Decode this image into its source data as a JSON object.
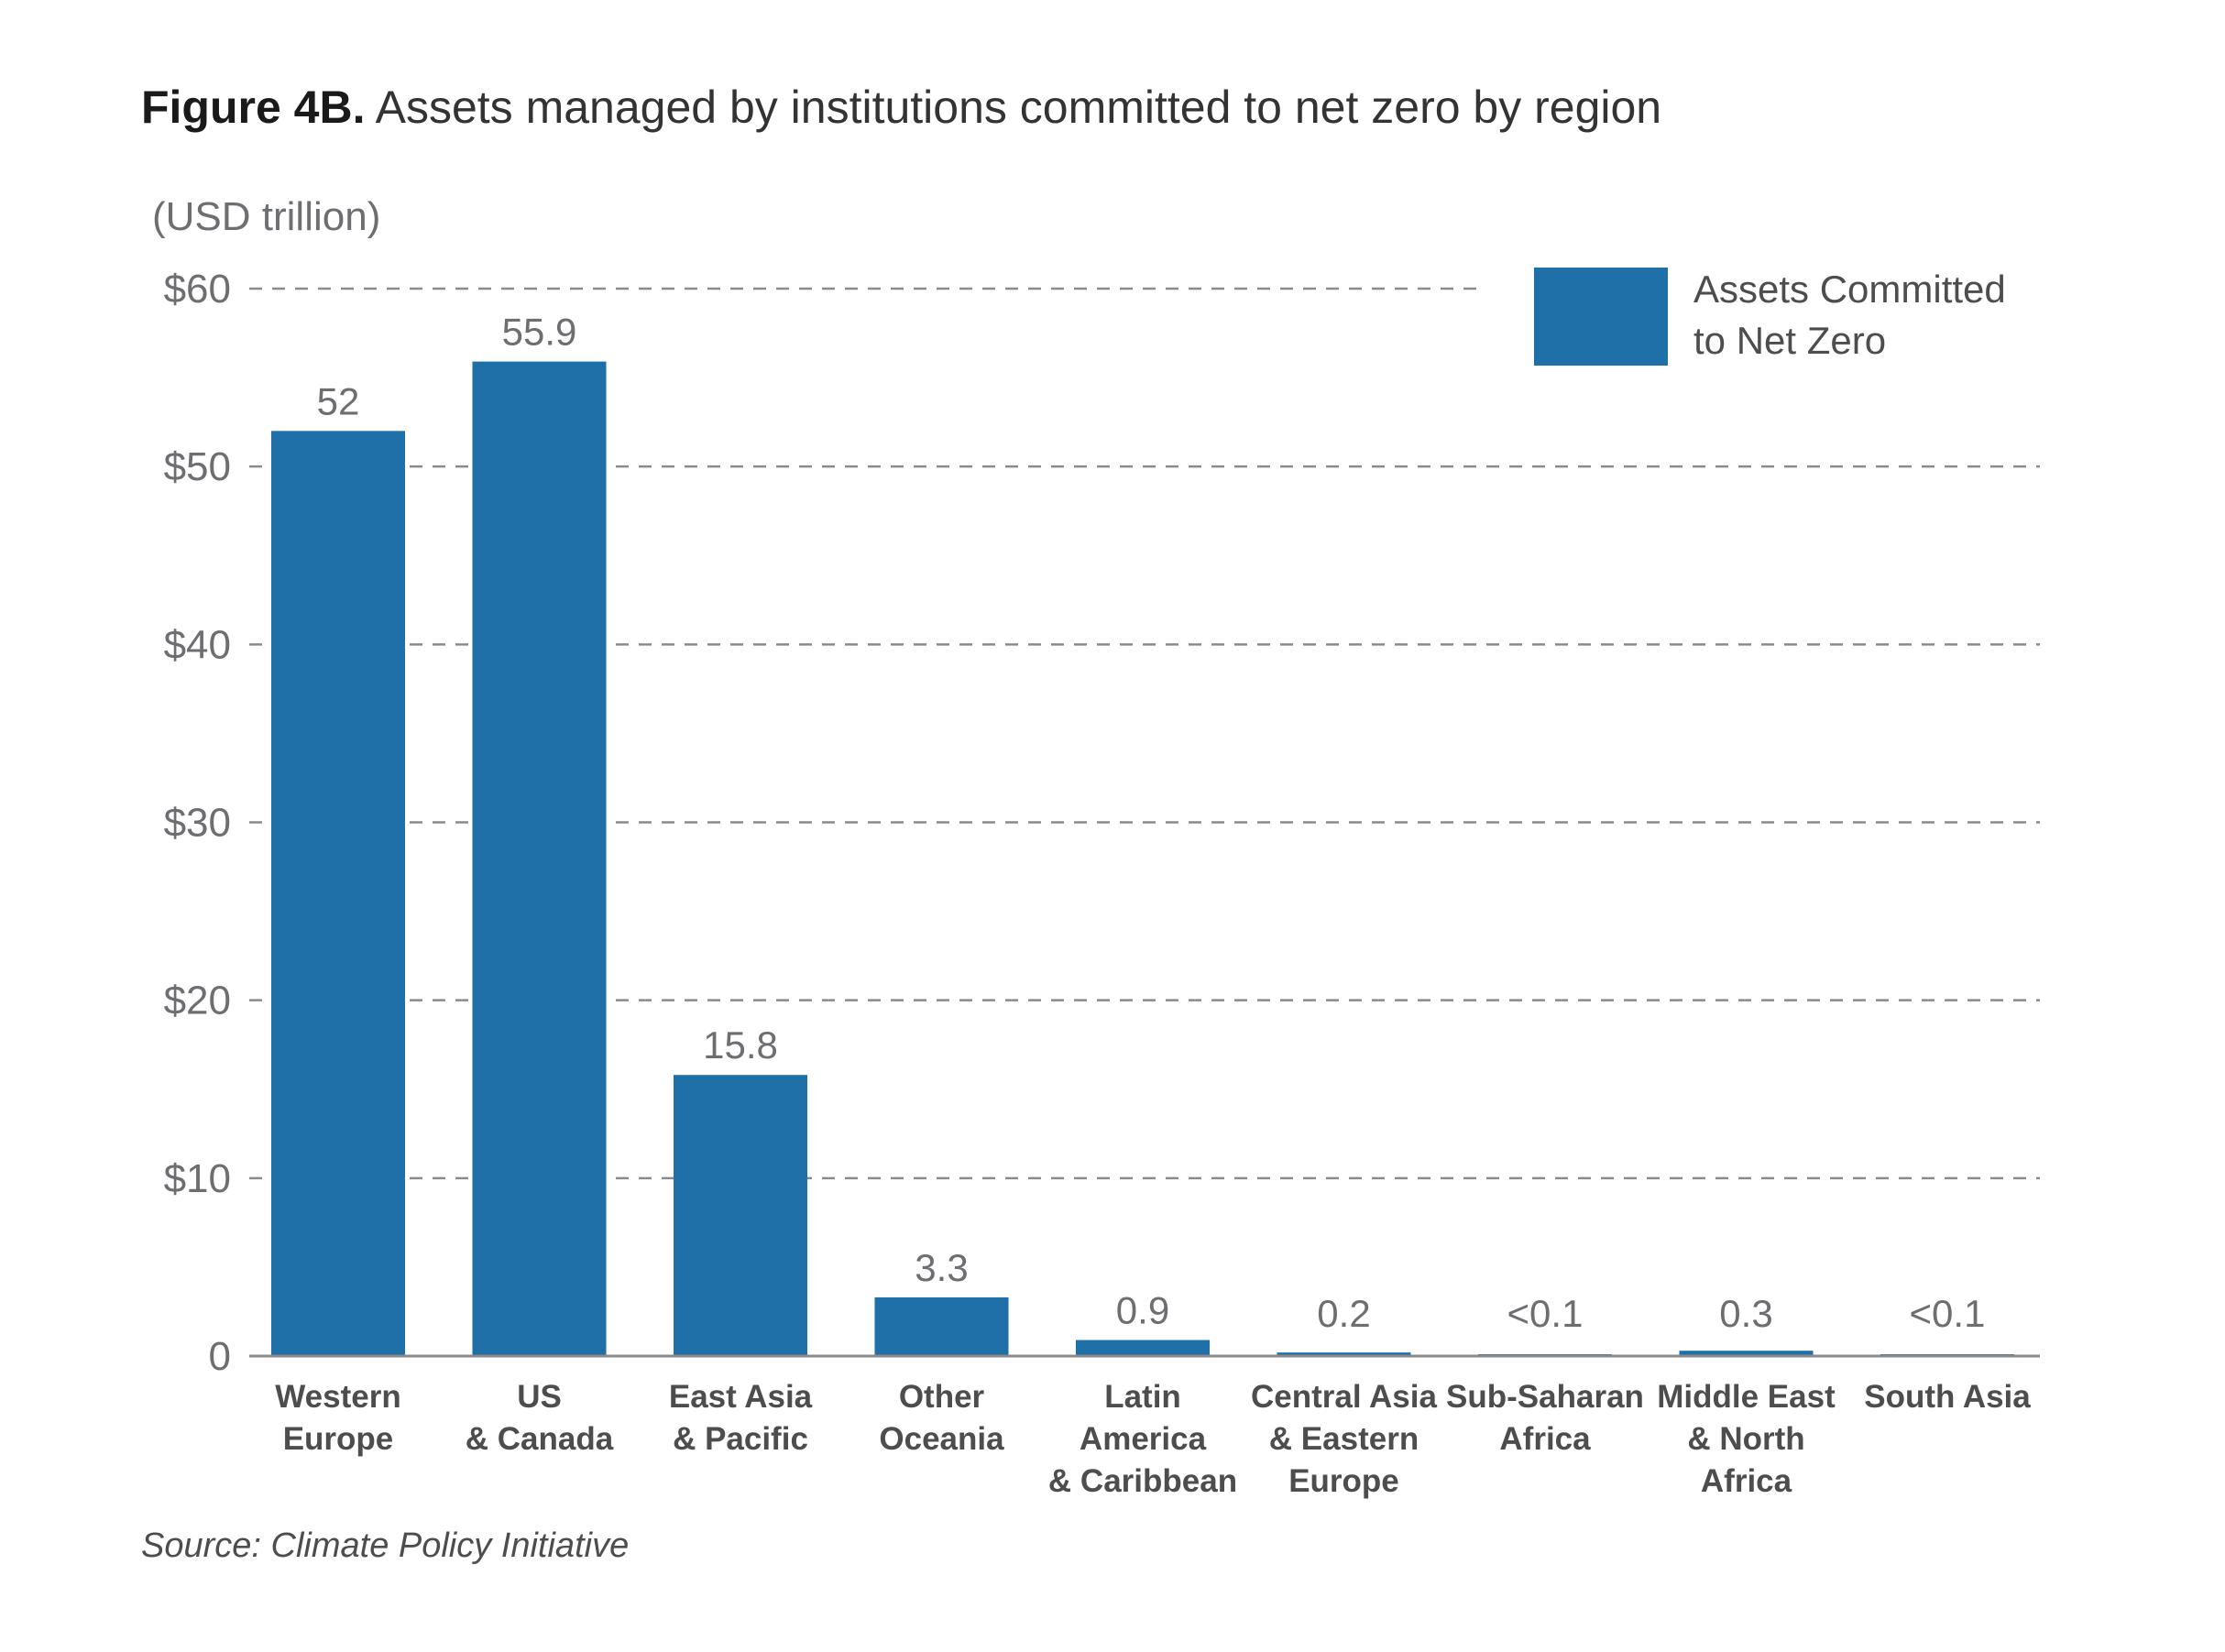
{
  "figure": {
    "label": "Figure 4B.",
    "title": "Assets managed by institutions committed to net zero by region",
    "units": "(USD trillion)",
    "source": "Source: Climate Policy Initiative"
  },
  "chart_data": {
    "type": "bar",
    "title": "Assets managed by institutions committed to net zero by region",
    "ylabel": "(USD trillion)",
    "xlabel": "",
    "ylim": [
      0,
      60
    ],
    "yticks": [
      0,
      10,
      20,
      30,
      40,
      50,
      60
    ],
    "ytick_labels": [
      "0",
      "$10",
      "$20",
      "$30",
      "$40",
      "$50",
      "$60"
    ],
    "grid": "horizontal dashed",
    "legend_position": "top-right",
    "bar_color": "#1f6fa8",
    "categories": [
      [
        "Western",
        "Europe"
      ],
      [
        "US",
        "& Canada"
      ],
      [
        "East Asia",
        "& Pacific"
      ],
      [
        "Other",
        "Oceania"
      ],
      [
        "Latin",
        "America",
        "& Caribbean"
      ],
      [
        "Central Asia",
        "& Eastern",
        "Europe"
      ],
      [
        "Sub-Saharan",
        "Africa"
      ],
      [
        "Middle East",
        "& North",
        "Africa"
      ],
      [
        "South Asia"
      ]
    ],
    "series": [
      {
        "name": "Assets Committed to Net Zero",
        "legend_lines": [
          "Assets Committed",
          "to Net Zero"
        ],
        "values": [
          52,
          55.9,
          15.8,
          3.3,
          0.9,
          0.2,
          0.05,
          0.3,
          0.05
        ],
        "data_labels": [
          "52",
          "55.9",
          "15.8",
          "3.3",
          "0.9",
          "0.2",
          "<0.1",
          "0.3",
          "<0.1"
        ]
      }
    ]
  }
}
